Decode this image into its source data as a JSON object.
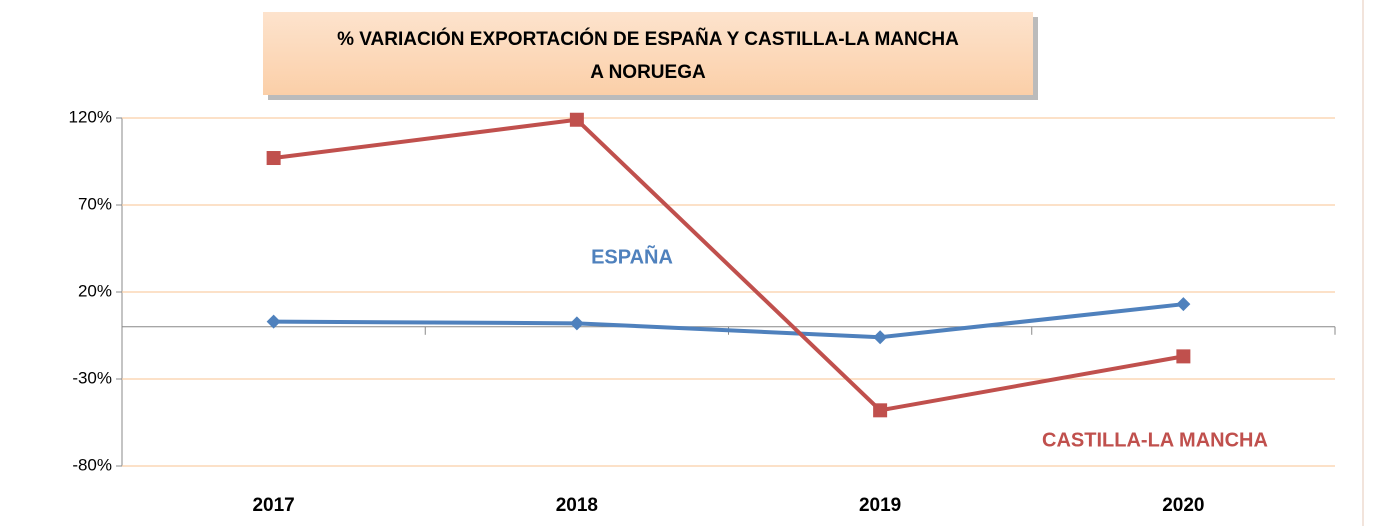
{
  "chart_data": {
    "type": "line",
    "title": [
      "% VARIACIÓN EXPORTACIÓN DE ESPAÑA Y CASTILLA-LA MANCHA",
      "A NORUEGA"
    ],
    "categories": [
      "2017",
      "2018",
      "2019",
      "2020"
    ],
    "series": [
      {
        "name": "ESPAÑA",
        "color": "#4f81bd",
        "marker": "diamond",
        "values": [
          3,
          2,
          -6,
          13
        ]
      },
      {
        "name": "CASTILLA-LA MANCHA",
        "color": "#c0504d",
        "marker": "square",
        "values": [
          97,
          119,
          -48,
          -17
        ]
      }
    ],
    "ylim": [
      -80,
      120
    ],
    "yticks": [
      {
        "value": -80,
        "label": "-80%"
      },
      {
        "value": -30,
        "label": "-30%"
      },
      {
        "value": 20,
        "label": "20%"
      },
      {
        "value": 70,
        "label": "70%"
      },
      {
        "value": 120,
        "label": "120%"
      }
    ],
    "grid": true
  }
}
